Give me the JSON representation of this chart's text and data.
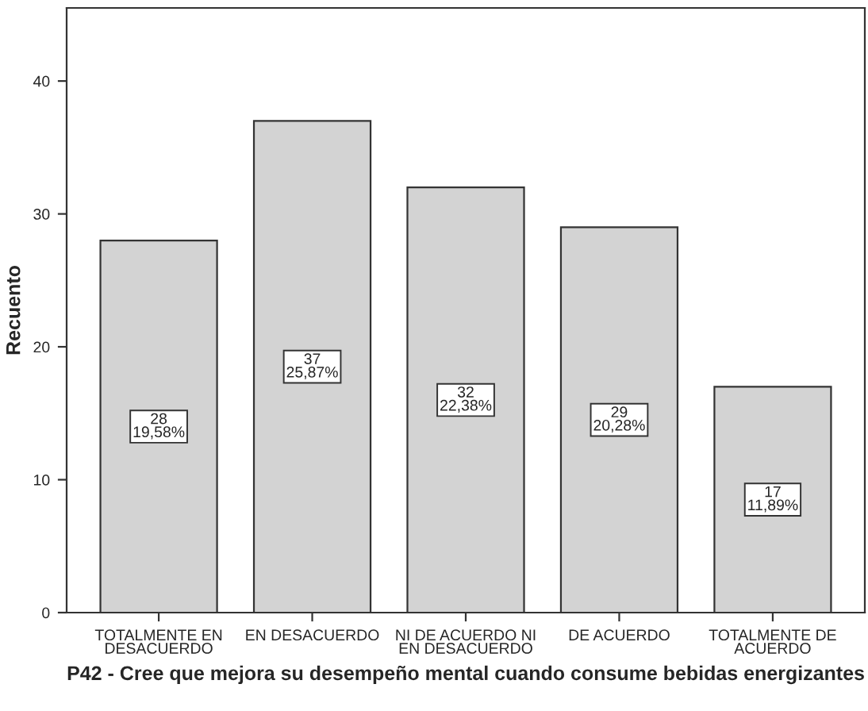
{
  "chart_data": {
    "type": "bar",
    "xlabel": "P42 - Cree que mejora su desempeño mental cuando consume bebidas energizantes",
    "ylabel": "Recuento",
    "categories": [
      "TOTALMENTE EN\nDESACUERDO",
      "EN DESACUERDO",
      "NI DE ACUERDO NI\nEN DESACUERDO",
      "DE ACUERDO",
      "TOTALMENTE DE\nACUERDO"
    ],
    "values": [
      28,
      37,
      32,
      29,
      17
    ],
    "color": "#d3d3d3",
    "value_labels": [
      "28\n19,58%",
      "37\n25,87%",
      "32\n22,38%",
      "29\n20,28%",
      "17\n11,89%"
    ],
    "ylim": [
      0,
      45.5
    ],
    "yticks": [
      0,
      10,
      20,
      30,
      40
    ],
    "grid": false
  }
}
